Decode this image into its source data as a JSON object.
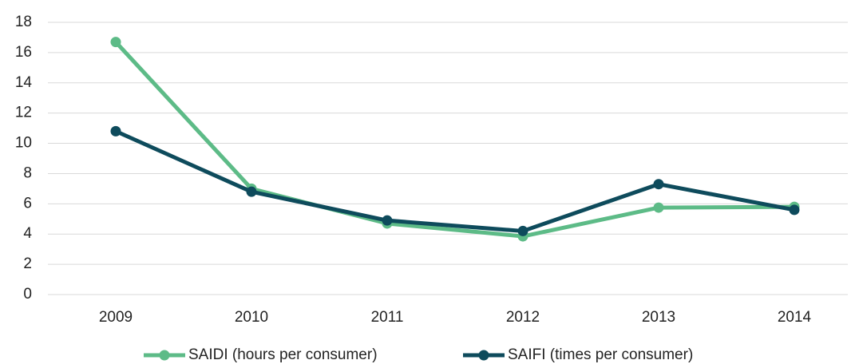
{
  "chart_data": {
    "type": "line",
    "categories": [
      "2009",
      "2010",
      "2011",
      "2012",
      "2013",
      "2014"
    ],
    "series": [
      {
        "name": "SAIDI (hours per consumer)",
        "color": "#5dbb87",
        "values": [
          16.7,
          7.0,
          4.7,
          3.85,
          5.75,
          5.8
        ]
      },
      {
        "name": "SAIFI (times per consumer)",
        "color": "#0e4b5c",
        "values": [
          10.8,
          6.8,
          4.9,
          4.2,
          7.3,
          5.6
        ]
      }
    ],
    "ylim": [
      0,
      18
    ],
    "yticks": [
      0,
      2,
      4,
      6,
      8,
      10,
      12,
      14,
      16,
      18
    ],
    "grid": true,
    "legend": "bottom"
  }
}
